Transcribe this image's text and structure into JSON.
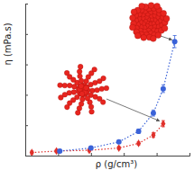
{
  "chart_data": {
    "type": "scatter",
    "x_label": "ρ (g/cm³)",
    "y_label": "η (mPa.s)",
    "xlim": [
      0,
      10
    ],
    "xticks": [
      0,
      2,
      4,
      6,
      8,
      10
    ],
    "ylim": [
      0,
      10
    ],
    "yticks": [
      0,
      2,
      4,
      6,
      8,
      10
    ],
    "tick_labels": false,
    "grid": false,
    "series": [
      {
        "color": "#e0302a",
        "marker": "diamond",
        "line_style": "dotted",
        "x": [
          0.4,
          1.9,
          3.9,
          5.7,
          6.9,
          7.8,
          8.4
        ],
        "values": [
          0.2,
          0.3,
          0.35,
          0.5,
          0.8,
          1.35,
          2.1
        ],
        "errors": [
          0.1,
          0.1,
          0.1,
          0.1,
          0.1,
          0.15,
          0.2
        ]
      },
      {
        "color": "#3a62d8",
        "marker": "circle",
        "line_style": "dotted",
        "x": [
          2.1,
          4.0,
          5.7,
          6.9,
          7.8,
          8.4,
          9.1
        ],
        "values": [
          0.3,
          0.5,
          0.9,
          1.6,
          2.8,
          4.4,
          7.5
        ],
        "errors": [
          0.1,
          0.1,
          0.1,
          0.15,
          0.2,
          0.25,
          0.4
        ]
      }
    ]
  }
}
